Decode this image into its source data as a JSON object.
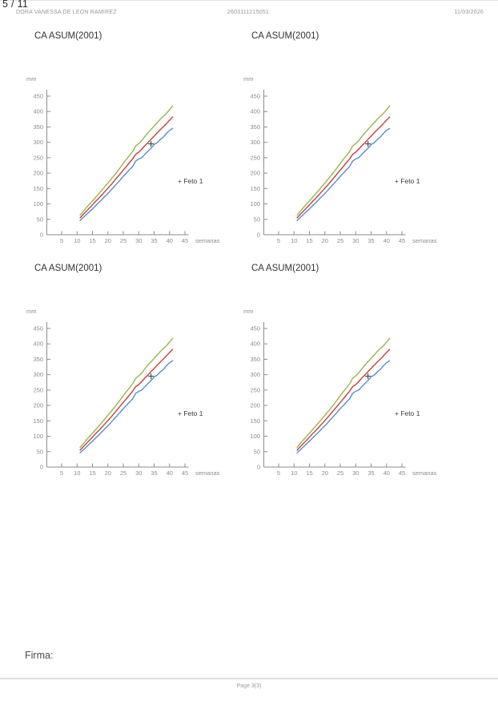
{
  "header": {
    "page_indicator": "5 / 11",
    "patient_name": "DORA VANESSA DE LEON RAMIREZ",
    "patient_id": "2603111215051",
    "date": "11/03/2026"
  },
  "footer": {
    "firma_label": "Firma:",
    "page_label": "Page 3(3)"
  },
  "colors": {
    "upper_centile": "#9ab54c",
    "median_centile": "#c4423a",
    "lower_centile": "#5b8dc8",
    "axis": "#8c8c8c",
    "marker": "#444444"
  },
  "chart_data": [
    {
      "position": "top-left",
      "type": "line",
      "title": "CA ASUM(2001)",
      "ylabel": "mm",
      "xlabel": "semanas",
      "xlim": [
        5,
        45
      ],
      "ylim": [
        0,
        450
      ],
      "xticks": [
        5,
        10,
        15,
        20,
        25,
        30,
        35,
        40,
        45
      ],
      "yticks": [
        0,
        50,
        100,
        150,
        200,
        250,
        300,
        350,
        400,
        450
      ],
      "grid": false,
      "x": [
        11,
        12,
        13,
        14,
        15,
        16,
        17,
        18,
        19,
        20,
        21,
        22,
        23,
        24,
        25,
        26,
        27,
        28,
        29,
        30,
        31,
        32,
        33,
        34,
        35,
        36,
        37,
        38,
        39,
        40,
        41
      ],
      "series": [
        {
          "name": "upper-centile",
          "color": "#9ab54c",
          "values": [
            64,
            76,
            88,
            99,
            110,
            121,
            133,
            144,
            156,
            168,
            180,
            192,
            205,
            218,
            232,
            245,
            257,
            270,
            288,
            296,
            306,
            319,
            331,
            342,
            353,
            364,
            375,
            385,
            394,
            406,
            418
          ]
        },
        {
          "name": "median-centile",
          "color": "#c4423a",
          "values": [
            55,
            66,
            76,
            87,
            97,
            108,
            118,
            129,
            140,
            151,
            162,
            174,
            186,
            198,
            210,
            222,
            234,
            246,
            261,
            268,
            278,
            289,
            299,
            310,
            320,
            331,
            341,
            351,
            361,
            372,
            382
          ]
        },
        {
          "name": "lower-centile",
          "color": "#5b8dc8",
          "values": [
            46,
            56,
            65,
            75,
            84,
            94,
            104,
            114,
            124,
            134,
            145,
            156,
            167,
            178,
            190,
            200,
            211,
            221,
            239,
            246,
            250,
            261,
            271,
            281,
            293,
            299,
            309,
            317,
            329,
            339,
            345
          ]
        }
      ],
      "marker": {
        "symbol": "+",
        "x": 34,
        "y": 295,
        "color": "#444444",
        "label": "Feto 1"
      },
      "legend": {
        "text": "+ Feto 1",
        "position": "right-middle"
      }
    },
    {
      "position": "top-right",
      "type": "line",
      "title": "CA ASUM(2001)",
      "ylabel": "mm",
      "xlabel": "semanas",
      "xlim": [
        5,
        45
      ],
      "ylim": [
        0,
        450
      ],
      "xticks": [
        5,
        10,
        15,
        20,
        25,
        30,
        35,
        40,
        45
      ],
      "yticks": [
        0,
        50,
        100,
        150,
        200,
        250,
        300,
        350,
        400,
        450
      ],
      "grid": false,
      "x": [
        11,
        12,
        13,
        14,
        15,
        16,
        17,
        18,
        19,
        20,
        21,
        22,
        23,
        24,
        25,
        26,
        27,
        28,
        29,
        30,
        31,
        32,
        33,
        34,
        35,
        36,
        37,
        38,
        39,
        40,
        41
      ],
      "series": [
        {
          "name": "upper-centile",
          "color": "#9ab54c",
          "values": [
            64,
            76,
            88,
            99,
            110,
            121,
            133,
            144,
            156,
            168,
            180,
            192,
            205,
            218,
            232,
            245,
            257,
            270,
            288,
            296,
            306,
            319,
            331,
            342,
            353,
            364,
            375,
            385,
            394,
            406,
            418
          ]
        },
        {
          "name": "median-centile",
          "color": "#c4423a",
          "values": [
            55,
            66,
            76,
            87,
            97,
            108,
            118,
            129,
            140,
            151,
            162,
            174,
            186,
            198,
            210,
            222,
            234,
            246,
            261,
            268,
            278,
            289,
            299,
            310,
            320,
            331,
            341,
            351,
            361,
            372,
            382
          ]
        },
        {
          "name": "lower-centile",
          "color": "#5b8dc8",
          "values": [
            46,
            56,
            65,
            75,
            84,
            94,
            104,
            114,
            124,
            134,
            145,
            156,
            167,
            178,
            190,
            200,
            211,
            221,
            239,
            246,
            250,
            261,
            271,
            281,
            293,
            299,
            309,
            317,
            329,
            339,
            345
          ]
        }
      ],
      "marker": {
        "symbol": "+",
        "x": 34,
        "y": 295,
        "color": "#444444",
        "label": "Feto 1"
      },
      "legend": {
        "text": "+ Feto 1",
        "position": "right-middle"
      }
    },
    {
      "position": "bottom-left",
      "type": "line",
      "title": "CA ASUM(2001)",
      "ylabel": "mm",
      "xlabel": "semanas",
      "xlim": [
        5,
        45
      ],
      "ylim": [
        0,
        450
      ],
      "xticks": [
        5,
        10,
        15,
        20,
        25,
        30,
        35,
        40,
        45
      ],
      "yticks": [
        0,
        50,
        100,
        150,
        200,
        250,
        300,
        350,
        400,
        450
      ],
      "grid": false,
      "x": [
        11,
        12,
        13,
        14,
        15,
        16,
        17,
        18,
        19,
        20,
        21,
        22,
        23,
        24,
        25,
        26,
        27,
        28,
        29,
        30,
        31,
        32,
        33,
        34,
        35,
        36,
        37,
        38,
        39,
        40,
        41
      ],
      "series": [
        {
          "name": "upper-centile",
          "color": "#9ab54c",
          "values": [
            64,
            76,
            88,
            99,
            110,
            121,
            133,
            144,
            156,
            168,
            180,
            192,
            205,
            218,
            232,
            245,
            257,
            270,
            288,
            296,
            306,
            319,
            331,
            342,
            353,
            364,
            375,
            385,
            394,
            406,
            418
          ]
        },
        {
          "name": "median-centile",
          "color": "#c4423a",
          "values": [
            55,
            66,
            76,
            87,
            97,
            108,
            118,
            129,
            140,
            151,
            162,
            174,
            186,
            198,
            210,
            222,
            234,
            246,
            261,
            268,
            278,
            289,
            299,
            310,
            320,
            331,
            341,
            351,
            361,
            372,
            382
          ]
        },
        {
          "name": "lower-centile",
          "color": "#5b8dc8",
          "values": [
            46,
            56,
            65,
            75,
            84,
            94,
            104,
            114,
            124,
            134,
            145,
            156,
            167,
            178,
            190,
            200,
            211,
            221,
            239,
            246,
            250,
            261,
            271,
            281,
            293,
            299,
            309,
            317,
            329,
            339,
            345
          ]
        }
      ],
      "marker": {
        "symbol": "+",
        "x": 34,
        "y": 295,
        "color": "#444444",
        "label": "Feto 1"
      },
      "legend": {
        "text": "+ Feto 1",
        "position": "right-middle"
      }
    },
    {
      "position": "bottom-right",
      "type": "line",
      "title": "CA ASUM(2001)",
      "ylabel": "mm",
      "xlabel": "semanas",
      "xlim": [
        5,
        45
      ],
      "ylim": [
        0,
        450
      ],
      "xticks": [
        5,
        10,
        15,
        20,
        25,
        30,
        35,
        40,
        45
      ],
      "yticks": [
        0,
        50,
        100,
        150,
        200,
        250,
        300,
        350,
        400,
        450
      ],
      "grid": false,
      "x": [
        11,
        12,
        13,
        14,
        15,
        16,
        17,
        18,
        19,
        20,
        21,
        22,
        23,
        24,
        25,
        26,
        27,
        28,
        29,
        30,
        31,
        32,
        33,
        34,
        35,
        36,
        37,
        38,
        39,
        40,
        41
      ],
      "series": [
        {
          "name": "upper-centile",
          "color": "#9ab54c",
          "values": [
            64,
            76,
            88,
            99,
            110,
            121,
            133,
            144,
            156,
            168,
            180,
            192,
            205,
            218,
            232,
            245,
            257,
            270,
            288,
            296,
            306,
            319,
            331,
            342,
            353,
            364,
            375,
            385,
            394,
            406,
            418
          ]
        },
        {
          "name": "median-centile",
          "color": "#c4423a",
          "values": [
            55,
            66,
            76,
            87,
            97,
            108,
            118,
            129,
            140,
            151,
            162,
            174,
            186,
            198,
            210,
            222,
            234,
            246,
            261,
            268,
            278,
            289,
            299,
            310,
            320,
            331,
            341,
            351,
            361,
            372,
            382
          ]
        },
        {
          "name": "lower-centile",
          "color": "#5b8dc8",
          "values": [
            46,
            56,
            65,
            75,
            84,
            94,
            104,
            114,
            124,
            134,
            145,
            156,
            167,
            178,
            190,
            200,
            211,
            221,
            239,
            246,
            250,
            261,
            271,
            281,
            293,
            299,
            309,
            317,
            329,
            339,
            345
          ]
        }
      ],
      "marker": {
        "symbol": "+",
        "x": 34,
        "y": 295,
        "color": "#444444",
        "label": "Feto 1"
      },
      "legend": {
        "text": "+ Feto 1",
        "position": "right-middle"
      }
    }
  ]
}
